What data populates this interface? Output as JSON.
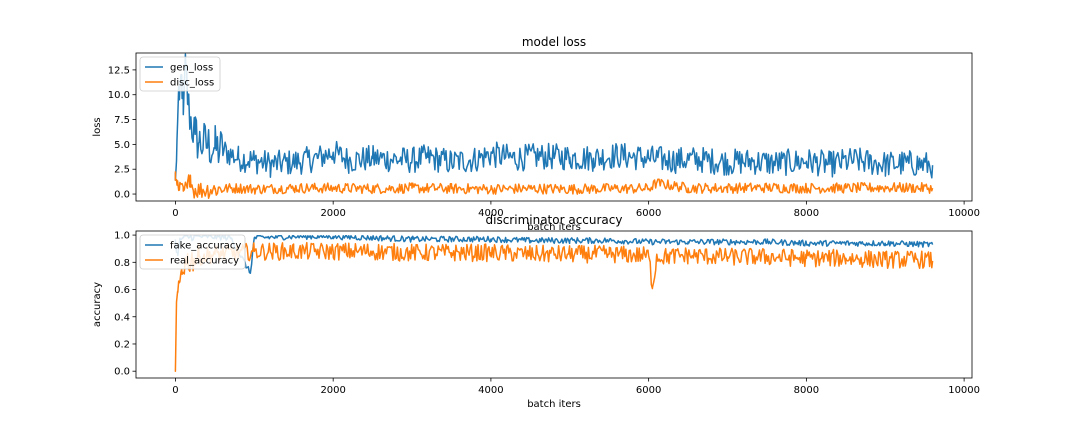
{
  "chart_data": [
    {
      "type": "line",
      "title": "model loss",
      "xlabel": "batch iters",
      "ylabel": "loss",
      "xlim": [
        -500,
        10100
      ],
      "ylim": [
        -0.7,
        14.2
      ],
      "xticks": [
        0,
        2000,
        4000,
        6000,
        8000,
        10000
      ],
      "xtick_labels": [
        "0",
        "2000",
        "4000",
        "6000",
        "8000",
        "10000"
      ],
      "yticks": [
        0.0,
        2.5,
        5.0,
        7.5,
        10.0,
        12.5
      ],
      "ytick_labels": [
        "0.0",
        "2.5",
        "5.0",
        "7.5",
        "10.0",
        "12.5"
      ],
      "legend_position": "top-left",
      "grid": false,
      "series": [
        {
          "name": "gen_loss",
          "color": "#1f77b4",
          "x": [
            0,
            20,
            50,
            80,
            100,
            130,
            160,
            200,
            250,
            300,
            400,
            500,
            600,
            800,
            1000,
            1200,
            1500,
            1800,
            2000,
            2200,
            2500,
            2800,
            3000,
            3200,
            3500,
            3800,
            4000,
            4300,
            4600,
            5000,
            5300,
            5600,
            6000,
            6300,
            6600,
            7000,
            7300,
            7600,
            8000,
            8300,
            8600,
            8800,
            9000,
            9300,
            9600
          ],
          "values": [
            1.4,
            5.5,
            9.5,
            12.0,
            8.0,
            13.2,
            9.0,
            7.2,
            6.0,
            5.2,
            5.0,
            4.6,
            4.4,
            3.6,
            3.4,
            3.0,
            3.2,
            3.6,
            4.2,
            3.4,
            3.6,
            3.5,
            3.4,
            3.7,
            3.2,
            3.5,
            4.0,
            3.6,
            3.8,
            3.7,
            3.6,
            3.9,
            3.6,
            3.4,
            3.5,
            3.2,
            3.3,
            3.1,
            3.3,
            3.0,
            3.4,
            3.2,
            3.0,
            3.1,
            2.9
          ]
        },
        {
          "name": "disc_loss",
          "color": "#ff7f0e",
          "x": [
            0,
            20,
            50,
            100,
            150,
            190,
            220,
            300,
            500,
            800,
            1000,
            1500,
            2000,
            2500,
            3000,
            3500,
            4000,
            4500,
            5000,
            5500,
            6000,
            6100,
            6500,
            7000,
            7500,
            8000,
            8500,
            9000,
            9600
          ],
          "values": [
            1.4,
            0.9,
            0.4,
            0.3,
            0.6,
            1.9,
            0.5,
            0.4,
            0.5,
            0.6,
            0.5,
            0.6,
            0.6,
            0.55,
            0.6,
            0.55,
            0.5,
            0.55,
            0.5,
            0.55,
            0.55,
            1.1,
            0.6,
            0.6,
            0.65,
            0.6,
            0.6,
            0.65,
            0.6
          ]
        }
      ]
    },
    {
      "type": "line",
      "title": "discriminator accuracy",
      "xlabel": "batch iters",
      "ylabel": "accuracy",
      "xlim": [
        -500,
        10100
      ],
      "ylim": [
        -0.05,
        1.03
      ],
      "xticks": [
        0,
        2000,
        4000,
        6000,
        8000,
        10000
      ],
      "xtick_labels": [
        "0",
        "2000",
        "4000",
        "6000",
        "8000",
        "10000"
      ],
      "yticks": [
        0.0,
        0.2,
        0.4,
        0.6,
        0.8,
        1.0
      ],
      "ytick_labels": [
        "0.0",
        "0.2",
        "0.4",
        "0.6",
        "0.8",
        "1.0"
      ],
      "legend_position": "top-left",
      "grid": false,
      "series": [
        {
          "name": "fake_accuracy",
          "color": "#1f77b4",
          "x": [
            0,
            30,
            60,
            100,
            200,
            400,
            700,
            950,
            1000,
            1500,
            2000,
            2500,
            3000,
            3500,
            4000,
            4500,
            5000,
            5500,
            6000,
            6500,
            7000,
            7500,
            8000,
            8500,
            9000,
            9600
          ],
          "values": [
            0.95,
            0.85,
            0.97,
            0.98,
            0.99,
            0.99,
            0.98,
            0.72,
            0.98,
            0.99,
            0.99,
            0.98,
            0.97,
            0.97,
            0.97,
            0.96,
            0.96,
            0.96,
            0.95,
            0.95,
            0.95,
            0.95,
            0.94,
            0.94,
            0.94,
            0.93
          ]
        },
        {
          "name": "real_accuracy",
          "color": "#ff7f0e",
          "x": [
            0,
            10,
            30,
            50,
            80,
            120,
            200,
            300,
            500,
            800,
            1000,
            1500,
            2000,
            2500,
            3000,
            3500,
            4000,
            4500,
            5000,
            5500,
            6000,
            6050,
            6100,
            6500,
            7000,
            7500,
            8000,
            8500,
            9000,
            9500,
            9600
          ],
          "values": [
            0.0,
            0.37,
            0.58,
            0.65,
            0.75,
            0.8,
            0.82,
            0.84,
            0.86,
            0.87,
            0.88,
            0.88,
            0.88,
            0.88,
            0.87,
            0.87,
            0.87,
            0.86,
            0.86,
            0.86,
            0.85,
            0.62,
            0.84,
            0.85,
            0.84,
            0.84,
            0.83,
            0.83,
            0.82,
            0.82,
            0.81
          ]
        }
      ]
    }
  ]
}
